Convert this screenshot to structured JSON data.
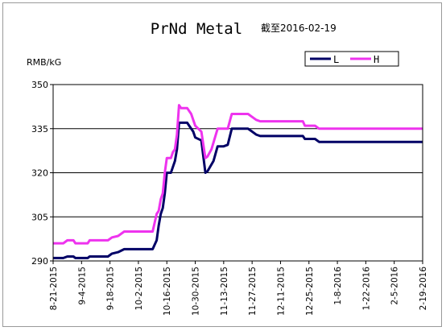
{
  "chart_data": {
    "type": "line",
    "title": "PrNd Metal",
    "subtitle": "截至2016-02-19",
    "ylabel": "RMB/kG",
    "xlabel": "",
    "ylim": [
      290,
      350
    ],
    "yticks": [
      290,
      305,
      320,
      335,
      350
    ],
    "xlim": [
      "2015-08-21",
      "2016-02-19"
    ],
    "x_tick_labels": [
      "8-21-2015",
      "9-4-2015",
      "9-18-2015",
      "10-2-2015",
      "10-16-2015",
      "10-30-2015",
      "11-13-2015",
      "11-27-2015",
      "12-11-2015",
      "12-25-2015",
      "1-8-2016",
      "1-22-2016",
      "2-5-2016",
      "2-19-2016"
    ],
    "grid": "horizontal",
    "legend_position": "top-right",
    "colors": {
      "L": "#000066",
      "H": "#ee33ee"
    },
    "series": [
      {
        "name": "L",
        "points": [
          [
            "2015-08-21",
            291
          ],
          [
            "2015-08-26",
            291
          ],
          [
            "2015-08-28",
            291.5
          ],
          [
            "2015-08-31",
            291.5
          ],
          [
            "2015-09-01",
            291
          ],
          [
            "2015-09-07",
            291
          ],
          [
            "2015-09-08",
            291.5
          ],
          [
            "2015-09-17",
            291.5
          ],
          [
            "2015-09-19",
            292.5
          ],
          [
            "2015-09-22",
            293
          ],
          [
            "2015-09-25",
            294
          ],
          [
            "2015-09-30",
            294
          ],
          [
            "2015-10-09",
            294
          ],
          [
            "2015-10-11",
            297
          ],
          [
            "2015-10-12",
            302
          ],
          [
            "2015-10-13",
            306
          ],
          [
            "2015-10-14",
            308
          ],
          [
            "2015-10-15",
            313
          ],
          [
            "2015-10-16",
            320
          ],
          [
            "2015-10-18",
            320
          ],
          [
            "2015-10-19",
            322
          ],
          [
            "2015-10-20",
            324
          ],
          [
            "2015-10-21",
            328
          ],
          [
            "2015-10-22",
            337
          ],
          [
            "2015-10-26",
            337
          ],
          [
            "2015-10-27",
            336
          ],
          [
            "2015-10-29",
            334
          ],
          [
            "2015-10-30",
            332
          ],
          [
            "2015-11-02",
            331
          ],
          [
            "2015-11-04",
            320
          ],
          [
            "2015-11-05",
            320.5
          ],
          [
            "2015-11-08",
            324
          ],
          [
            "2015-11-10",
            329
          ],
          [
            "2015-11-13",
            329
          ],
          [
            "2015-11-15",
            329.5
          ],
          [
            "2015-11-17",
            335
          ],
          [
            "2015-11-25",
            335
          ],
          [
            "2015-11-27",
            334
          ],
          [
            "2015-11-29",
            333
          ],
          [
            "2015-12-01",
            332.5
          ],
          [
            "2015-12-22",
            332.5
          ],
          [
            "2015-12-23",
            331.5
          ],
          [
            "2015-12-28",
            331.5
          ],
          [
            "2015-12-30",
            330.5
          ],
          [
            "2016-02-19",
            330.5
          ]
        ]
      },
      {
        "name": "H",
        "points": [
          [
            "2015-08-21",
            296
          ],
          [
            "2015-08-26",
            296
          ],
          [
            "2015-08-28",
            297
          ],
          [
            "2015-08-31",
            297
          ],
          [
            "2015-09-01",
            296
          ],
          [
            "2015-09-07",
            296
          ],
          [
            "2015-09-08",
            297
          ],
          [
            "2015-09-17",
            297
          ],
          [
            "2015-09-19",
            298
          ],
          [
            "2015-09-22",
            298.5
          ],
          [
            "2015-09-25",
            300
          ],
          [
            "2015-09-30",
            300
          ],
          [
            "2015-10-09",
            300
          ],
          [
            "2015-10-11",
            306
          ],
          [
            "2015-10-12",
            307
          ],
          [
            "2015-10-13",
            311
          ],
          [
            "2015-10-14",
            313
          ],
          [
            "2015-10-15",
            320
          ],
          [
            "2015-10-16",
            325
          ],
          [
            "2015-10-18",
            325
          ],
          [
            "2015-10-19",
            327
          ],
          [
            "2015-10-20",
            328
          ],
          [
            "2015-10-21",
            333
          ],
          [
            "2015-10-22",
            343
          ],
          [
            "2015-10-23",
            342
          ],
          [
            "2015-10-26",
            342
          ],
          [
            "2015-10-28",
            340
          ],
          [
            "2015-10-30",
            336
          ],
          [
            "2015-11-02",
            334
          ],
          [
            "2015-11-04",
            325
          ],
          [
            "2015-11-05",
            325.5
          ],
          [
            "2015-11-07",
            328
          ],
          [
            "2015-11-10",
            335
          ],
          [
            "2015-11-15",
            335
          ],
          [
            "2015-11-17",
            340
          ],
          [
            "2015-11-25",
            340
          ],
          [
            "2015-11-27",
            339
          ],
          [
            "2015-11-29",
            338
          ],
          [
            "2015-12-01",
            337.5
          ],
          [
            "2015-12-22",
            337.5
          ],
          [
            "2015-12-23",
            336
          ],
          [
            "2015-12-28",
            336
          ],
          [
            "2015-12-30",
            335
          ],
          [
            "2016-02-19",
            335
          ]
        ]
      }
    ]
  }
}
